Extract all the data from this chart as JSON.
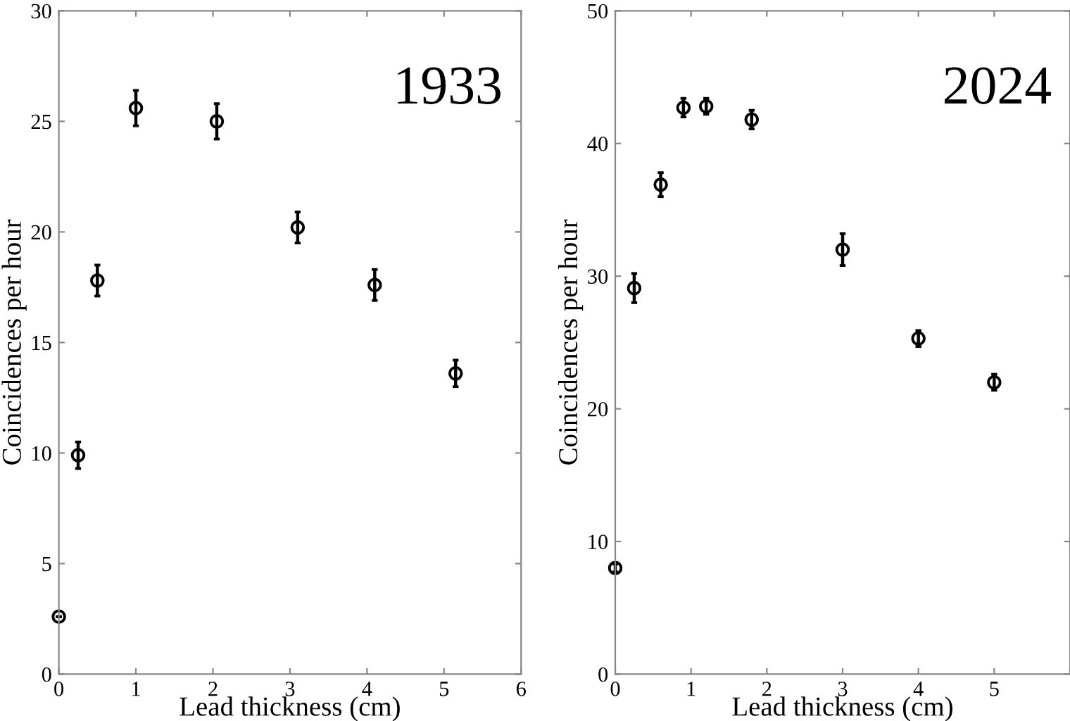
{
  "chart_data": [
    {
      "type": "scatter",
      "xlabel": "Lead thickness (cm)",
      "ylabel": "Coincidences per hour",
      "annotations": [
        "1933"
      ],
      "marker": "circle",
      "grid": false,
      "series": [
        {
          "color": "#000000",
          "x": [
            0,
            0.25,
            0.5,
            1.0,
            2.05,
            3.1,
            4.1,
            5.15
          ],
          "values": [
            2.6,
            9.9,
            17.8,
            25.6,
            25.0,
            20.2,
            17.6,
            13.6
          ],
          "errors": [
            null,
            0.6,
            0.7,
            0.8,
            0.8,
            0.7,
            0.7,
            0.6
          ]
        }
      ],
      "xlim": [
        0,
        6
      ],
      "xticks": [
        0,
        1,
        2,
        3,
        4,
        5,
        6
      ],
      "ylim": [
        0,
        30
      ],
      "yticks": [
        0,
        5,
        10,
        15,
        20,
        25,
        30
      ]
    },
    {
      "type": "scatter",
      "xlabel": "Lead thickness (cm)",
      "ylabel": "Coincidences per hour",
      "annotations": [
        "2024"
      ],
      "marker": "circle",
      "grid": false,
      "series": [
        {
          "color": "#000000",
          "x": [
            0,
            0.25,
            0.6,
            0.9,
            1.2,
            1.8,
            3.0,
            4.0,
            5.0
          ],
          "values": [
            8.0,
            29.1,
            36.9,
            42.7,
            42.8,
            41.8,
            32.0,
            25.3,
            22.0
          ],
          "errors": [
            0.3,
            1.1,
            0.9,
            0.7,
            0.6,
            0.7,
            1.2,
            0.6,
            0.6
          ]
        }
      ],
      "xlim": [
        0,
        6
      ],
      "xticks": [
        0,
        1,
        2,
        3,
        4,
        5,
        {
          "value": 6,
          "label": null
        }
      ],
      "ylim": [
        0,
        50
      ],
      "yticks": [
        0,
        10,
        20,
        30,
        40,
        50
      ]
    }
  ]
}
